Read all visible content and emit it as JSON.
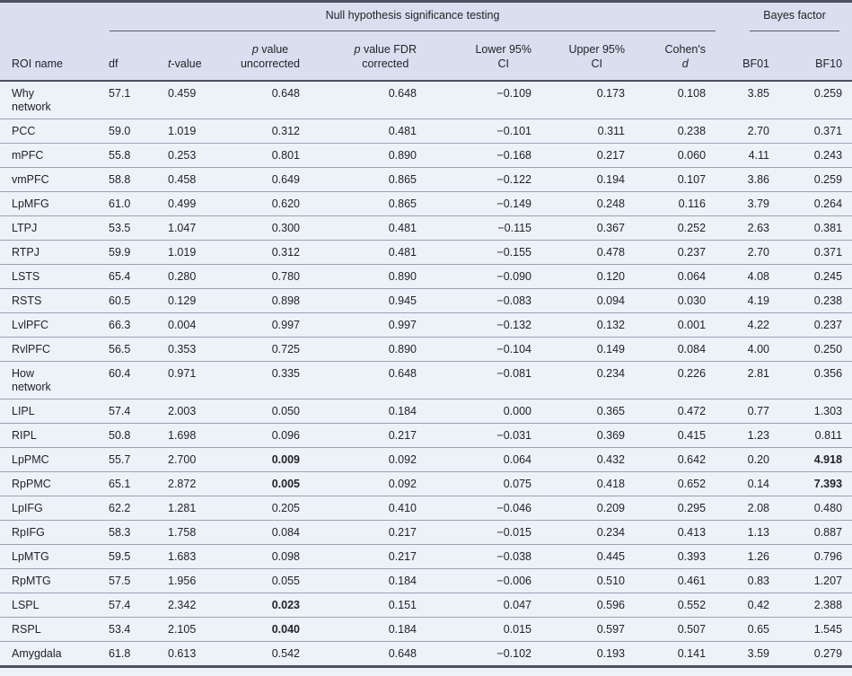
{
  "colors": {
    "header_bg": "#d9dfee",
    "body_bg": "#edf1f8",
    "border_dark": "#4a5160",
    "row_line": "#9aa1b1"
  },
  "table": {
    "group_headers": [
      {
        "id": "roi-spacer",
        "label": "",
        "colspan": 1,
        "underline": false
      },
      {
        "id": "nhst",
        "label": "Null hypothesis significance testing",
        "colspan": 7,
        "underline": true
      },
      {
        "id": "bayes",
        "label": "Bayes factor",
        "colspan": 2,
        "underline": true
      }
    ],
    "columns": [
      {
        "id": "roi",
        "align": "left",
        "label_lines": [
          [
            {
              "text": "ROI name"
            }
          ]
        ]
      },
      {
        "id": "df",
        "align": "left",
        "label_lines": [
          [
            {
              "text": "df"
            }
          ]
        ]
      },
      {
        "id": "tvalue",
        "align": "left",
        "label_lines": [
          [
            {
              "text": "t",
              "italic": true
            },
            {
              "text": "-value"
            }
          ]
        ]
      },
      {
        "id": "p_uncorrected",
        "align": "right",
        "label_lines": [
          [
            {
              "text": "p",
              "italic": true
            },
            {
              "text": " value"
            }
          ],
          [
            {
              "text": "uncorrected"
            }
          ]
        ]
      },
      {
        "id": "p_fdr",
        "align": "right",
        "label_lines": [
          [
            {
              "text": "p",
              "italic": true
            },
            {
              "text": " value FDR"
            }
          ],
          [
            {
              "text": "corrected"
            }
          ]
        ]
      },
      {
        "id": "lower_ci",
        "align": "right",
        "label_lines": [
          [
            {
              "text": "Lower 95%"
            }
          ],
          [
            {
              "text": "CI"
            }
          ]
        ]
      },
      {
        "id": "upper_ci",
        "align": "right",
        "label_lines": [
          [
            {
              "text": "Upper 95%"
            }
          ],
          [
            {
              "text": "CI"
            }
          ]
        ]
      },
      {
        "id": "cohens_d",
        "align": "right",
        "label_lines": [
          [
            {
              "text": "Cohen's"
            }
          ],
          [
            {
              "text": "d",
              "italic": true
            }
          ]
        ]
      },
      {
        "id": "bf01",
        "align": "right",
        "label_lines": [
          [
            {
              "text": "BF01"
            }
          ]
        ]
      },
      {
        "id": "bf10",
        "align": "right",
        "label_lines": [
          [
            {
              "text": "BF10"
            }
          ]
        ]
      }
    ],
    "rows": [
      {
        "cells": [
          "Why\nnetwork",
          "57.1",
          "0.459",
          "0.648",
          "0.648",
          "−0.109",
          "0.173",
          "0.108",
          "3.85",
          "0.259"
        ],
        "bold": []
      },
      {
        "cells": [
          "PCC",
          "59.0",
          "1.019",
          "0.312",
          "0.481",
          "−0.101",
          "0.311",
          "0.238",
          "2.70",
          "0.371"
        ],
        "bold": []
      },
      {
        "cells": [
          "mPFC",
          "55.8",
          "0.253",
          "0.801",
          "0.890",
          "−0.168",
          "0.217",
          "0.060",
          "4.11",
          "0.243"
        ],
        "bold": []
      },
      {
        "cells": [
          "vmPFC",
          "58.8",
          "0.458",
          "0.649",
          "0.865",
          "−0.122",
          "0.194",
          "0.107",
          "3.86",
          "0.259"
        ],
        "bold": []
      },
      {
        "cells": [
          "LpMFG",
          "61.0",
          "0.499",
          "0.620",
          "0.865",
          "−0.149",
          "0.248",
          "0.116",
          "3.79",
          "0.264"
        ],
        "bold": []
      },
      {
        "cells": [
          "LTPJ",
          "53.5",
          "1.047",
          "0.300",
          "0.481",
          "−0.115",
          "0.367",
          "0.252",
          "2.63",
          "0.381"
        ],
        "bold": []
      },
      {
        "cells": [
          "RTPJ",
          "59.9",
          "1.019",
          "0.312",
          "0.481",
          "−0.155",
          "0.478",
          "0.237",
          "2.70",
          "0.371"
        ],
        "bold": []
      },
      {
        "cells": [
          "LSTS",
          "65.4",
          "0.280",
          "0.780",
          "0.890",
          "−0.090",
          "0.120",
          "0.064",
          "4.08",
          "0.245"
        ],
        "bold": []
      },
      {
        "cells": [
          "RSTS",
          "60.5",
          "0.129",
          "0.898",
          "0.945",
          "−0.083",
          "0.094",
          "0.030",
          "4.19",
          "0.238"
        ],
        "bold": []
      },
      {
        "cells": [
          "LvlPFC",
          "66.3",
          "0.004",
          "0.997",
          "0.997",
          "−0.132",
          "0.132",
          "0.001",
          "4.22",
          "0.237"
        ],
        "bold": []
      },
      {
        "cells": [
          "RvlPFC",
          "56.5",
          "0.353",
          "0.725",
          "0.890",
          "−0.104",
          "0.149",
          "0.084",
          "4.00",
          "0.250"
        ],
        "bold": []
      },
      {
        "cells": [
          "How\nnetwork",
          "60.4",
          "0.971",
          "0.335",
          "0.648",
          "−0.081",
          "0.234",
          "0.226",
          "2.81",
          "0.356"
        ],
        "bold": []
      },
      {
        "cells": [
          "LIPL",
          "57.4",
          "2.003",
          "0.050",
          "0.184",
          "0.000",
          "0.365",
          "0.472",
          "0.77",
          "1.303"
        ],
        "bold": []
      },
      {
        "cells": [
          "RIPL",
          "50.8",
          "1.698",
          "0.096",
          "0.217",
          "−0.031",
          "0.369",
          "0.415",
          "1.23",
          "0.811"
        ],
        "bold": []
      },
      {
        "cells": [
          "LpPMC",
          "55.7",
          "2.700",
          "0.009",
          "0.092",
          "0.064",
          "0.432",
          "0.642",
          "0.20",
          "4.918"
        ],
        "bold": [
          3,
          9
        ]
      },
      {
        "cells": [
          "RpPMC",
          "65.1",
          "2.872",
          "0.005",
          "0.092",
          "0.075",
          "0.418",
          "0.652",
          "0.14",
          "7.393"
        ],
        "bold": [
          3,
          9
        ]
      },
      {
        "cells": [
          "LpIFG",
          "62.2",
          "1.281",
          "0.205",
          "0.410",
          "−0.046",
          "0.209",
          "0.295",
          "2.08",
          "0.480"
        ],
        "bold": []
      },
      {
        "cells": [
          "RpIFG",
          "58.3",
          "1.758",
          "0.084",
          "0.217",
          "−0.015",
          "0.234",
          "0.413",
          "1.13",
          "0.887"
        ],
        "bold": []
      },
      {
        "cells": [
          "LpMTG",
          "59.5",
          "1.683",
          "0.098",
          "0.217",
          "−0.038",
          "0.445",
          "0.393",
          "1.26",
          "0.796"
        ],
        "bold": []
      },
      {
        "cells": [
          "RpMTG",
          "57.5",
          "1.956",
          "0.055",
          "0.184",
          "−0.006",
          "0.510",
          "0.461",
          "0.83",
          "1.207"
        ],
        "bold": []
      },
      {
        "cells": [
          "LSPL",
          "57.4",
          "2.342",
          "0.023",
          "0.151",
          "0.047",
          "0.596",
          "0.552",
          "0.42",
          "2.388"
        ],
        "bold": [
          3
        ]
      },
      {
        "cells": [
          "RSPL",
          "53.4",
          "2.105",
          "0.040",
          "0.184",
          "0.015",
          "0.597",
          "0.507",
          "0.65",
          "1.545"
        ],
        "bold": [
          3
        ]
      },
      {
        "cells": [
          "Amygdala",
          "61.8",
          "0.613",
          "0.542",
          "0.648",
          "−0.102",
          "0.193",
          "0.141",
          "3.59",
          "0.279"
        ],
        "bold": []
      }
    ]
  }
}
